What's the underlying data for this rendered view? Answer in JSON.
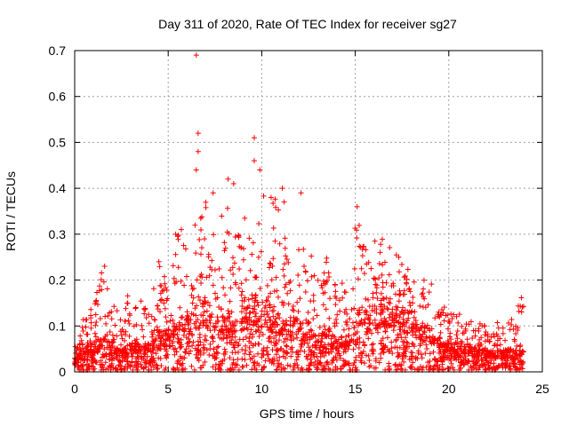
{
  "chart_data": {
    "type": "scatter",
    "title": "Day 311 of 2020, Rate Of TEC Index for receiver sg27",
    "xlabel": "GPS time / hours",
    "ylabel": "ROTI / TECUs",
    "xlim": [
      0,
      25
    ],
    "ylim": [
      0,
      0.7
    ],
    "xticks": [
      0,
      5,
      10,
      15,
      20,
      25
    ],
    "yticks": [
      0,
      0.1,
      0.2,
      0.3,
      0.4,
      0.5,
      0.6,
      0.7
    ],
    "grid": true,
    "marker": "+",
    "color": "#ff0000",
    "envelope": {
      "x": [
        0,
        0.5,
        1,
        1.5,
        2,
        2.5,
        3,
        3.5,
        4,
        4.5,
        5,
        5.5,
        6,
        6.5,
        7,
        7.5,
        8,
        8.5,
        9,
        9.5,
        10,
        10.5,
        11,
        11.5,
        12,
        12.5,
        13,
        13.5,
        14,
        14.5,
        15,
        15.5,
        16,
        16.5,
        17,
        17.5,
        18,
        18.5,
        19,
        19.5,
        20,
        20.5,
        21,
        21.5,
        22,
        22.5,
        23,
        23.5,
        24
      ],
      "upper": [
        0.06,
        0.12,
        0.15,
        0.23,
        0.15,
        0.12,
        0.19,
        0.18,
        0.16,
        0.24,
        0.2,
        0.3,
        0.28,
        0.36,
        0.39,
        0.32,
        0.42,
        0.29,
        0.35,
        0.33,
        0.38,
        0.4,
        0.35,
        0.32,
        0.28,
        0.27,
        0.22,
        0.25,
        0.2,
        0.19,
        0.36,
        0.27,
        0.29,
        0.29,
        0.27,
        0.26,
        0.22,
        0.21,
        0.2,
        0.14,
        0.15,
        0.13,
        0.12,
        0.12,
        0.11,
        0.11,
        0.1,
        0.12,
        0.19
      ],
      "median": [
        0.02,
        0.04,
        0.04,
        0.05,
        0.04,
        0.03,
        0.04,
        0.04,
        0.04,
        0.06,
        0.06,
        0.07,
        0.08,
        0.09,
        0.1,
        0.09,
        0.09,
        0.08,
        0.09,
        0.09,
        0.09,
        0.09,
        0.08,
        0.08,
        0.07,
        0.06,
        0.05,
        0.06,
        0.05,
        0.05,
        0.08,
        0.09,
        0.09,
        0.1,
        0.1,
        0.09,
        0.08,
        0.07,
        0.06,
        0.04,
        0.04,
        0.04,
        0.04,
        0.03,
        0.03,
        0.03,
        0.03,
        0.03,
        0.04
      ]
    },
    "outliers": [
      {
        "x": 6.5,
        "y": 0.69
      },
      {
        "x": 6.6,
        "y": 0.52
      },
      {
        "x": 6.6,
        "y": 0.48
      },
      {
        "x": 6.5,
        "y": 0.44
      },
      {
        "x": 9.6,
        "y": 0.51
      },
      {
        "x": 9.6,
        "y": 0.46
      },
      {
        "x": 9.9,
        "y": 0.44
      },
      {
        "x": 8.2,
        "y": 0.42
      },
      {
        "x": 8.5,
        "y": 0.41
      },
      {
        "x": 7.4,
        "y": 0.39
      },
      {
        "x": 11.1,
        "y": 0.4
      },
      {
        "x": 12.1,
        "y": 0.39
      },
      {
        "x": 10.5,
        "y": 0.38
      },
      {
        "x": 11.2,
        "y": 0.37
      },
      {
        "x": 15.1,
        "y": 0.36
      },
      {
        "x": 5.7,
        "y": 0.31
      },
      {
        "x": 5.4,
        "y": 0.3
      },
      {
        "x": 1.6,
        "y": 0.23
      },
      {
        "x": 4.5,
        "y": 0.24
      }
    ]
  }
}
